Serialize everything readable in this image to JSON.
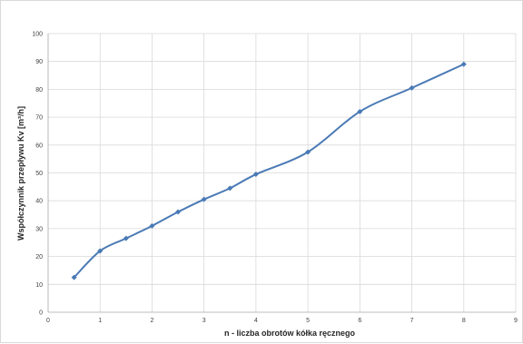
{
  "chart_data": {
    "type": "line",
    "title": "",
    "xlabel": "n - liczba obrotów kółka ręcznego",
    "ylabel": "Współczynnik przepływu Kv [m³/h]",
    "xlim": [
      0,
      9
    ],
    "ylim": [
      0,
      100
    ],
    "x_ticks": [
      "0",
      "1",
      "2",
      "3",
      "4",
      "5",
      "6",
      "7",
      "8",
      "9"
    ],
    "y_ticks": [
      "0",
      "10",
      "20",
      "30",
      "40",
      "50",
      "60",
      "70",
      "80",
      "90",
      "100"
    ],
    "grid": true,
    "legend": "none",
    "smooth": true,
    "marker": "diamond",
    "colors": {
      "series": "#4a7ab5",
      "grid": "#d9d9d9"
    },
    "series": [
      {
        "x": [
          0.5,
          1,
          1.5,
          2,
          2.5,
          3,
          3.5,
          4,
          5,
          6,
          7,
          8
        ],
        "y": [
          12.5,
          22,
          26.5,
          31,
          36,
          40.5,
          44.5,
          49.5,
          57.5,
          72,
          80.5,
          89
        ]
      }
    ]
  }
}
